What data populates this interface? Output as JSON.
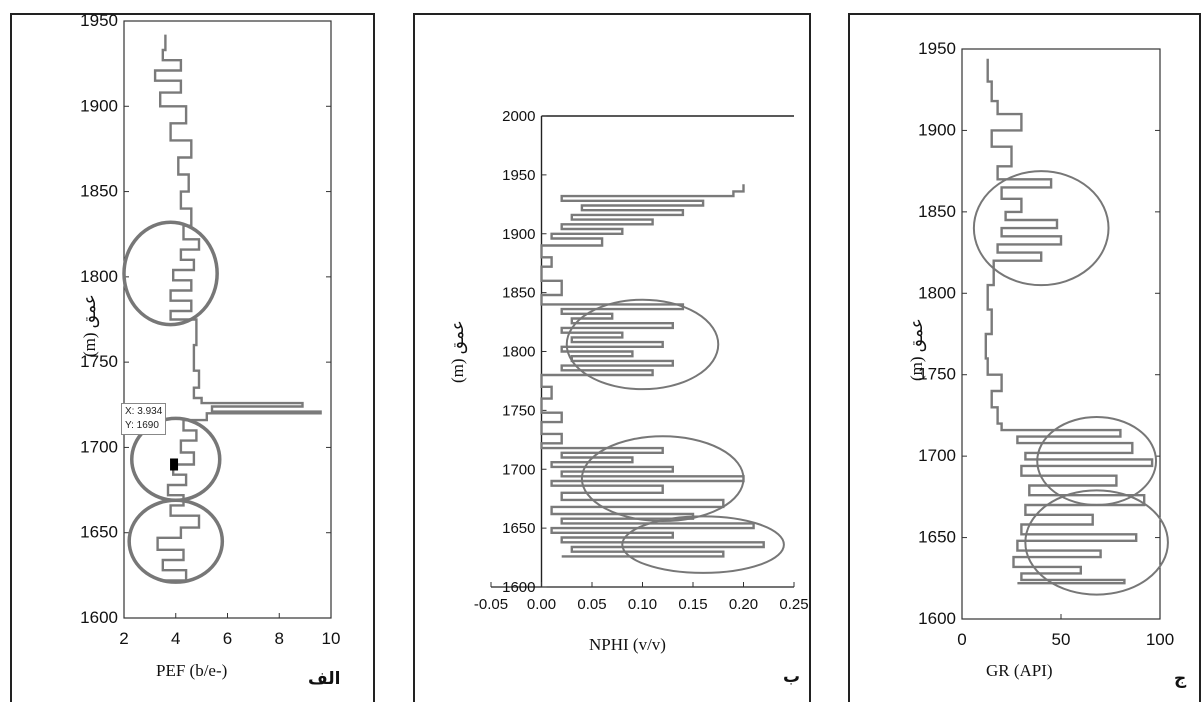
{
  "panels": [
    {
      "panel_label": "الف",
      "x_title": "PEF (b/e-)",
      "y_title_fa": "عمق",
      "y_title_unit": "(m)",
      "tooltip": {
        "x_line": "X: 3.934",
        "y_line": "Y: 1690"
      }
    },
    {
      "panel_label": "ب",
      "x_title": "NPHI (v/v)",
      "y_title_fa": "عمق",
      "y_title_unit": "(m)"
    },
    {
      "panel_label": "ج",
      "x_title": "GR (API)",
      "y_title_fa": "عمق",
      "y_title_unit": "(m)"
    }
  ],
  "chart_data": [
    {
      "type": "line",
      "xlabel": "PEF (b/e-)",
      "ylabel": "عمق (m)",
      "xlim": [
        2,
        10
      ],
      "ylim": [
        1600,
        1950
      ],
      "x_ticks": [
        "2",
        "4",
        "6",
        "8",
        "10"
      ],
      "y_ticks": [
        "1600",
        "1650",
        "1700",
        "1750",
        "1800",
        "1850",
        "1900",
        "1950"
      ],
      "series": [
        {
          "values": [
            [
              3.4,
              1622
            ],
            [
              4.4,
              1628
            ],
            [
              3.5,
              1634
            ],
            [
              4.3,
              1640
            ],
            [
              3.3,
              1647
            ],
            [
              4.2,
              1653
            ],
            [
              4.9,
              1660
            ],
            [
              3.8,
              1666
            ],
            [
              4.3,
              1672
            ],
            [
              3.7,
              1678
            ],
            [
              4.4,
              1684
            ],
            [
              3.9,
              1690
            ],
            [
              4.7,
              1697
            ],
            [
              4.2,
              1704
            ],
            [
              4.8,
              1710
            ],
            [
              4.3,
              1716
            ],
            [
              5.2,
              1720
            ],
            [
              9.6,
              1721
            ],
            [
              5.4,
              1724
            ],
            [
              8.9,
              1726
            ],
            [
              5.0,
              1729
            ],
            [
              4.7,
              1735
            ],
            [
              4.9,
              1745
            ],
            [
              4.7,
              1760
            ],
            [
              4.8,
              1775
            ],
            [
              3.8,
              1780
            ],
            [
              4.6,
              1786
            ],
            [
              3.8,
              1792
            ],
            [
              4.6,
              1798
            ],
            [
              3.9,
              1804
            ],
            [
              4.7,
              1810
            ],
            [
              4.2,
              1816
            ],
            [
              4.9,
              1822
            ],
            [
              4.3,
              1830
            ],
            [
              4.6,
              1840
            ],
            [
              4.2,
              1850
            ],
            [
              4.5,
              1860
            ],
            [
              4.1,
              1870
            ],
            [
              4.6,
              1880
            ],
            [
              3.8,
              1890
            ],
            [
              4.4,
              1900
            ],
            [
              3.4,
              1908
            ],
            [
              4.2,
              1915
            ],
            [
              3.2,
              1921
            ],
            [
              4.2,
              1927
            ],
            [
              3.5,
              1933
            ],
            [
              3.6,
              1942
            ]
          ]
        }
      ],
      "annotations": [
        {
          "type": "ellipse",
          "center": [
            3.8,
            1802
          ],
          "half_width": 1.8,
          "half_height": 30
        },
        {
          "type": "ellipse",
          "center": [
            4.0,
            1693
          ],
          "half_width": 1.7,
          "half_height": 24
        },
        {
          "type": "ellipse",
          "center": [
            4.0,
            1645
          ],
          "half_width": 1.8,
          "half_height": 24
        },
        {
          "type": "marker",
          "at": [
            3.934,
            1690
          ]
        }
      ]
    },
    {
      "type": "line",
      "xlabel": "NPHI (v/v)",
      "ylabel": "عمق (m)",
      "xlim": [
        -0.05,
        0.25
      ],
      "ylim": [
        1600,
        2000
      ],
      "x_ticks": [
        "-0.05",
        "0.00",
        "0.05",
        "0.10",
        "0.15",
        "0.20",
        "0.25"
      ],
      "y_ticks": [
        "1600",
        "1650",
        "1700",
        "1750",
        "1800",
        "1850",
        "1900",
        "1950",
        "2000"
      ],
      "series": [
        {
          "values": [
            [
              0.02,
              1626
            ],
            [
              0.18,
              1630
            ],
            [
              0.03,
              1634
            ],
            [
              0.22,
              1638
            ],
            [
              0.02,
              1642
            ],
            [
              0.13,
              1646
            ],
            [
              0.01,
              1650
            ],
            [
              0.21,
              1654
            ],
            [
              0.02,
              1658
            ],
            [
              0.15,
              1662
            ],
            [
              0.01,
              1668
            ],
            [
              0.18,
              1674
            ],
            [
              0.02,
              1680
            ],
            [
              0.12,
              1686
            ],
            [
              0.01,
              1690
            ],
            [
              0.2,
              1694
            ],
            [
              0.02,
              1698
            ],
            [
              0.13,
              1702
            ],
            [
              0.01,
              1706
            ],
            [
              0.09,
              1710
            ],
            [
              0.02,
              1714
            ],
            [
              0.12,
              1718
            ],
            [
              0.0,
              1722
            ],
            [
              0.02,
              1730
            ],
            [
              0.0,
              1740
            ],
            [
              0.02,
              1748
            ],
            [
              0.0,
              1760
            ],
            [
              0.01,
              1770
            ],
            [
              0.0,
              1780
            ],
            [
              0.11,
              1784
            ],
            [
              0.02,
              1788
            ],
            [
              0.13,
              1792
            ],
            [
              0.03,
              1796
            ],
            [
              0.09,
              1800
            ],
            [
              0.02,
              1804
            ],
            [
              0.12,
              1808
            ],
            [
              0.03,
              1812
            ],
            [
              0.08,
              1816
            ],
            [
              0.02,
              1820
            ],
            [
              0.13,
              1824
            ],
            [
              0.03,
              1828
            ],
            [
              0.07,
              1832
            ],
            [
              0.02,
              1836
            ],
            [
              0.14,
              1840
            ],
            [
              0.0,
              1848
            ],
            [
              0.02,
              1860
            ],
            [
              0.0,
              1872
            ],
            [
              0.01,
              1880
            ],
            [
              0.0,
              1890
            ],
            [
              0.06,
              1896
            ],
            [
              0.01,
              1900
            ],
            [
              0.08,
              1904
            ],
            [
              0.02,
              1908
            ],
            [
              0.11,
              1912
            ],
            [
              0.03,
              1916
            ],
            [
              0.14,
              1920
            ],
            [
              0.04,
              1924
            ],
            [
              0.16,
              1928
            ],
            [
              0.02,
              1932
            ],
            [
              0.19,
              1936
            ],
            [
              0.2,
              1942
            ]
          ]
        }
      ],
      "annotations": [
        {
          "type": "ellipse",
          "center": [
            0.1,
            1806
          ],
          "half_width": 0.075,
          "half_height": 38
        },
        {
          "type": "ellipse",
          "center": [
            0.12,
            1692
          ],
          "half_width": 0.08,
          "half_height": 36
        },
        {
          "type": "ellipse",
          "center": [
            0.16,
            1636
          ],
          "half_width": 0.08,
          "half_height": 24
        }
      ]
    },
    {
      "type": "line",
      "xlabel": "GR (API)",
      "ylabel": "عمق (m)",
      "xlim": [
        0,
        100
      ],
      "ylim": [
        1600,
        1950
      ],
      "x_ticks": [
        "0",
        "50",
        "100"
      ],
      "y_ticks": [
        "1600",
        "1650",
        "1700",
        "1750",
        "1800",
        "1850",
        "1900",
        "1950"
      ],
      "series": [
        {
          "values": [
            [
              28,
              1622
            ],
            [
              82,
              1624
            ],
            [
              30,
              1628
            ],
            [
              60,
              1632
            ],
            [
              26,
              1638
            ],
            [
              70,
              1642
            ],
            [
              28,
              1648
            ],
            [
              88,
              1652
            ],
            [
              30,
              1658
            ],
            [
              66,
              1664
            ],
            [
              32,
              1670
            ],
            [
              92,
              1676
            ],
            [
              34,
              1682
            ],
            [
              78,
              1688
            ],
            [
              30,
              1694
            ],
            [
              96,
              1698
            ],
            [
              32,
              1702
            ],
            [
              86,
              1708
            ],
            [
              28,
              1712
            ],
            [
              80,
              1716
            ],
            [
              20,
              1720
            ],
            [
              18,
              1730
            ],
            [
              15,
              1740
            ],
            [
              20,
              1750
            ],
            [
              13,
              1760
            ],
            [
              12,
              1775
            ],
            [
              15,
              1790
            ],
            [
              13,
              1805
            ],
            [
              16,
              1820
            ],
            [
              40,
              1825
            ],
            [
              18,
              1830
            ],
            [
              50,
              1835
            ],
            [
              20,
              1840
            ],
            [
              48,
              1845
            ],
            [
              22,
              1850
            ],
            [
              30,
              1858
            ],
            [
              20,
              1865
            ],
            [
              45,
              1870
            ],
            [
              18,
              1878
            ],
            [
              25,
              1890
            ],
            [
              15,
              1900
            ],
            [
              30,
              1910
            ],
            [
              18,
              1918
            ],
            [
              15,
              1930
            ],
            [
              13,
              1944
            ]
          ]
        }
      ],
      "annotations": [
        {
          "type": "ellipse",
          "center": [
            40,
            1840
          ],
          "half_width": 34,
          "half_height": 35
        },
        {
          "type": "ellipse",
          "center": [
            68,
            1697
          ],
          "half_width": 30,
          "half_height": 27
        },
        {
          "type": "ellipse",
          "center": [
            68,
            1647
          ],
          "half_width": 36,
          "half_height": 32
        }
      ]
    }
  ]
}
